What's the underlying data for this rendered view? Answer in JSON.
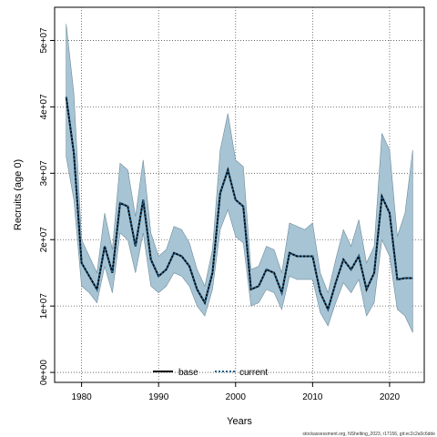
{
  "chart_data": {
    "type": "area",
    "xlabel": "Years",
    "ylabel": "Recruits (age 0)",
    "xlim": [
      1976.5,
      2024.5
    ],
    "ylim": [
      -1500000,
      55000000
    ],
    "x_ticks": [
      1980,
      1990,
      2000,
      2010,
      2020
    ],
    "x_tick_labels": [
      "1980",
      "1990",
      "2000",
      "2010",
      "2020"
    ],
    "y_ticks": [
      0,
      10000000,
      20000000,
      30000000,
      40000000,
      50000000
    ],
    "y_tick_labels": [
      "0e+00",
      "1e+07",
      "2e+07",
      "3e+07",
      "4e+07",
      "5e+07"
    ],
    "grid": true,
    "legend_position": "bottom-center",
    "x": [
      1978,
      1979,
      1980,
      1981,
      1982,
      1983,
      1984,
      1985,
      1986,
      1987,
      1988,
      1989,
      1990,
      1991,
      1992,
      1993,
      1994,
      1995,
      1996,
      1997,
      1998,
      1999,
      2000,
      2001,
      2002,
      2003,
      2004,
      2005,
      2006,
      2007,
      2008,
      2009,
      2010,
      2011,
      2012,
      2013,
      2014,
      2015,
      2016,
      2017,
      2018,
      2019,
      2020,
      2021,
      2022,
      2023
    ],
    "series": [
      {
        "name": "base",
        "color": "#000000",
        "line_style": "solid",
        "values": [
          41500000,
          33000000,
          16500000,
          14500000,
          12500000,
          19000000,
          15000000,
          25500000,
          25000000,
          19000000,
          26000000,
          17000000,
          14500000,
          15500000,
          18000000,
          17500000,
          16000000,
          12500000,
          10500000,
          15000000,
          27000000,
          30500000,
          26000000,
          25000000,
          12500000,
          13000000,
          15500000,
          15000000,
          12000000,
          18000000,
          17500000,
          17500000,
          17500000,
          12000000,
          9500000,
          13500000,
          17000000,
          15500000,
          17500000,
          12500000,
          15000000,
          26500000,
          24000000,
          14000000,
          14200000,
          14200000
        ]
      },
      {
        "name": "current",
        "color": "#1f5f8b",
        "line_style": "dotted",
        "values": [
          41500000,
          33000000,
          16500000,
          14500000,
          12500000,
          19000000,
          15000000,
          25500000,
          25000000,
          19000000,
          26000000,
          17000000,
          14500000,
          15500000,
          18000000,
          17500000,
          16000000,
          12500000,
          10500000,
          15000000,
          27000000,
          30500000,
          26000000,
          25000000,
          12500000,
          13000000,
          15500000,
          15000000,
          12000000,
          18000000,
          17500000,
          17500000,
          17500000,
          12000000,
          9500000,
          13500000,
          17000000,
          15500000,
          17500000,
          12500000,
          15000000,
          26500000,
          24000000,
          14000000,
          14200000,
          14200000
        ]
      }
    ],
    "interval": {
      "color": "#a7c4d4",
      "lower": [
        32500000,
        26000000,
        13000000,
        12000000,
        10500000,
        16000000,
        12000000,
        21000000,
        20000000,
        15000000,
        21000000,
        13000000,
        12000000,
        13000000,
        15000000,
        14500000,
        13000000,
        10000000,
        8500000,
        12500000,
        21500000,
        24500000,
        20500000,
        19500000,
        10000000,
        10500000,
        12500000,
        12000000,
        9500000,
        14500000,
        14000000,
        14000000,
        14000000,
        9000000,
        7000000,
        10500000,
        13500000,
        12000000,
        14000000,
        8500000,
        10500000,
        20000000,
        17500000,
        9500000,
        8500000,
        6000000
      ],
      "upper": [
        52500000,
        42000000,
        20000000,
        17500000,
        15000000,
        24000000,
        18500000,
        31500000,
        30500000,
        23500000,
        32000000,
        21000000,
        17500000,
        18500000,
        22000000,
        21500000,
        19500000,
        15500000,
        13000000,
        18500000,
        33500000,
        39000000,
        32000000,
        31000000,
        15500000,
        16000000,
        19000000,
        18500000,
        15000000,
        22500000,
        22000000,
        21500000,
        22500000,
        15000000,
        12000000,
        17000000,
        21500000,
        19000000,
        23000000,
        16500000,
        19000000,
        36000000,
        33500000,
        20500000,
        24000000,
        33500000
      ]
    }
  },
  "footnote": "stockassessment.org, NShelting_2023, r17156, git:ec2c2a0c6dde"
}
